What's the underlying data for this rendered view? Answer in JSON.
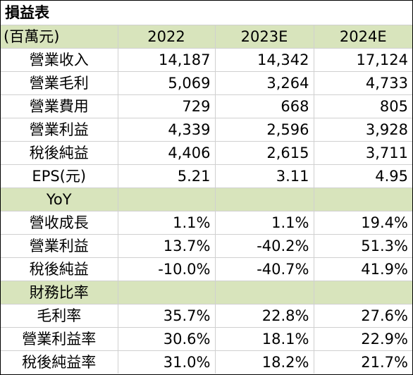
{
  "title": "損益表",
  "header": {
    "unit": "(百萬元)",
    "years": [
      "2022",
      "2023E",
      "2024E"
    ]
  },
  "income": [
    {
      "label": "營業收入",
      "values": [
        "14,187",
        "14,342",
        "17,124"
      ]
    },
    {
      "label": "營業毛利",
      "values": [
        "5,069",
        "3,264",
        "4,733"
      ]
    },
    {
      "label": "營業費用",
      "values": [
        "729",
        "668",
        "805"
      ]
    },
    {
      "label": "營業利益",
      "values": [
        "4,339",
        "2,596",
        "3,928"
      ]
    },
    {
      "label": "稅後純益",
      "values": [
        "4,406",
        "2,615",
        "3,711"
      ]
    },
    {
      "label": "EPS(元)",
      "values": [
        "5.21",
        "3.11",
        "4.95"
      ]
    }
  ],
  "yoy_section": "YoY",
  "yoy": [
    {
      "label": "營收成長",
      "values": [
        "1.1%",
        "1.1%",
        "19.4%"
      ]
    },
    {
      "label": "營業利益",
      "values": [
        "13.7%",
        "-40.2%",
        "51.3%"
      ]
    },
    {
      "label": "稅後純益",
      "values": [
        "-10.0%",
        "-40.7%",
        "41.9%"
      ]
    }
  ],
  "ratio_section": "財務比率",
  "ratios": [
    {
      "label": "毛利率",
      "values": [
        "35.7%",
        "22.8%",
        "27.6%"
      ]
    },
    {
      "label": "營業利益率",
      "values": [
        "30.6%",
        "18.1%",
        "22.9%"
      ]
    },
    {
      "label": "稅後純益率",
      "values": [
        "31.0%",
        "18.2%",
        "21.7%"
      ]
    }
  ],
  "colors": {
    "section_fill": "#d8e4bc",
    "grid": "#d0d0d0"
  }
}
